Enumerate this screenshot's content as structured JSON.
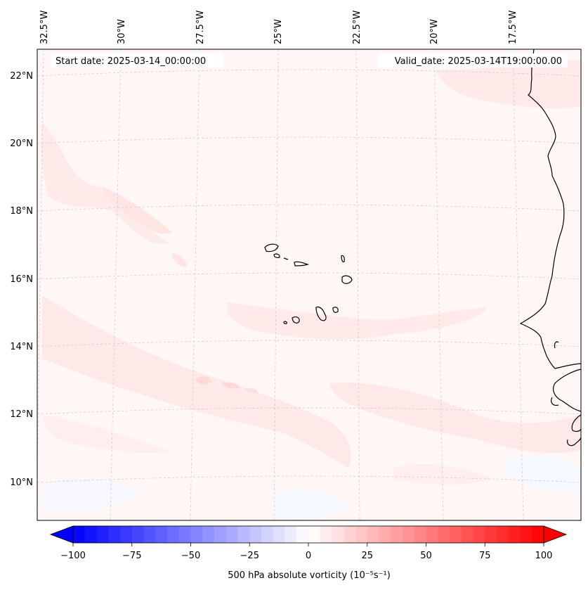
{
  "header": {
    "start_date": "Start date: 2025-03-14_00:00:00",
    "valid_date": "Valid_date: 2025-03-14T19:00:00.00"
  },
  "axes": {
    "lon_labels": [
      "32.5°W",
      "30°W",
      "27.5°W",
      "25°W",
      "22.5°W",
      "20°W",
      "17.5°W"
    ],
    "lat_labels": [
      "22°N",
      "20°N",
      "18°N",
      "16°N",
      "14°N",
      "12°N",
      "10°N"
    ]
  },
  "colorbar": {
    "ticks": [
      "−100",
      "−75",
      "−50",
      "−25",
      "0",
      "25",
      "50",
      "75",
      "100"
    ],
    "label": "500 hPa absolute vorticity (10⁻⁵s⁻¹)",
    "min": -100,
    "max": 100,
    "negative_color": "#0000ff",
    "positive_color": "#ff0000"
  },
  "colors": {
    "background_field": "#fff6f6",
    "band_field": "#ffe6e6",
    "band_strong": "#ffd9d9",
    "negative_patch": "#f6f8ff",
    "coastline": "#000000",
    "grid": "#c8c8c8"
  }
}
